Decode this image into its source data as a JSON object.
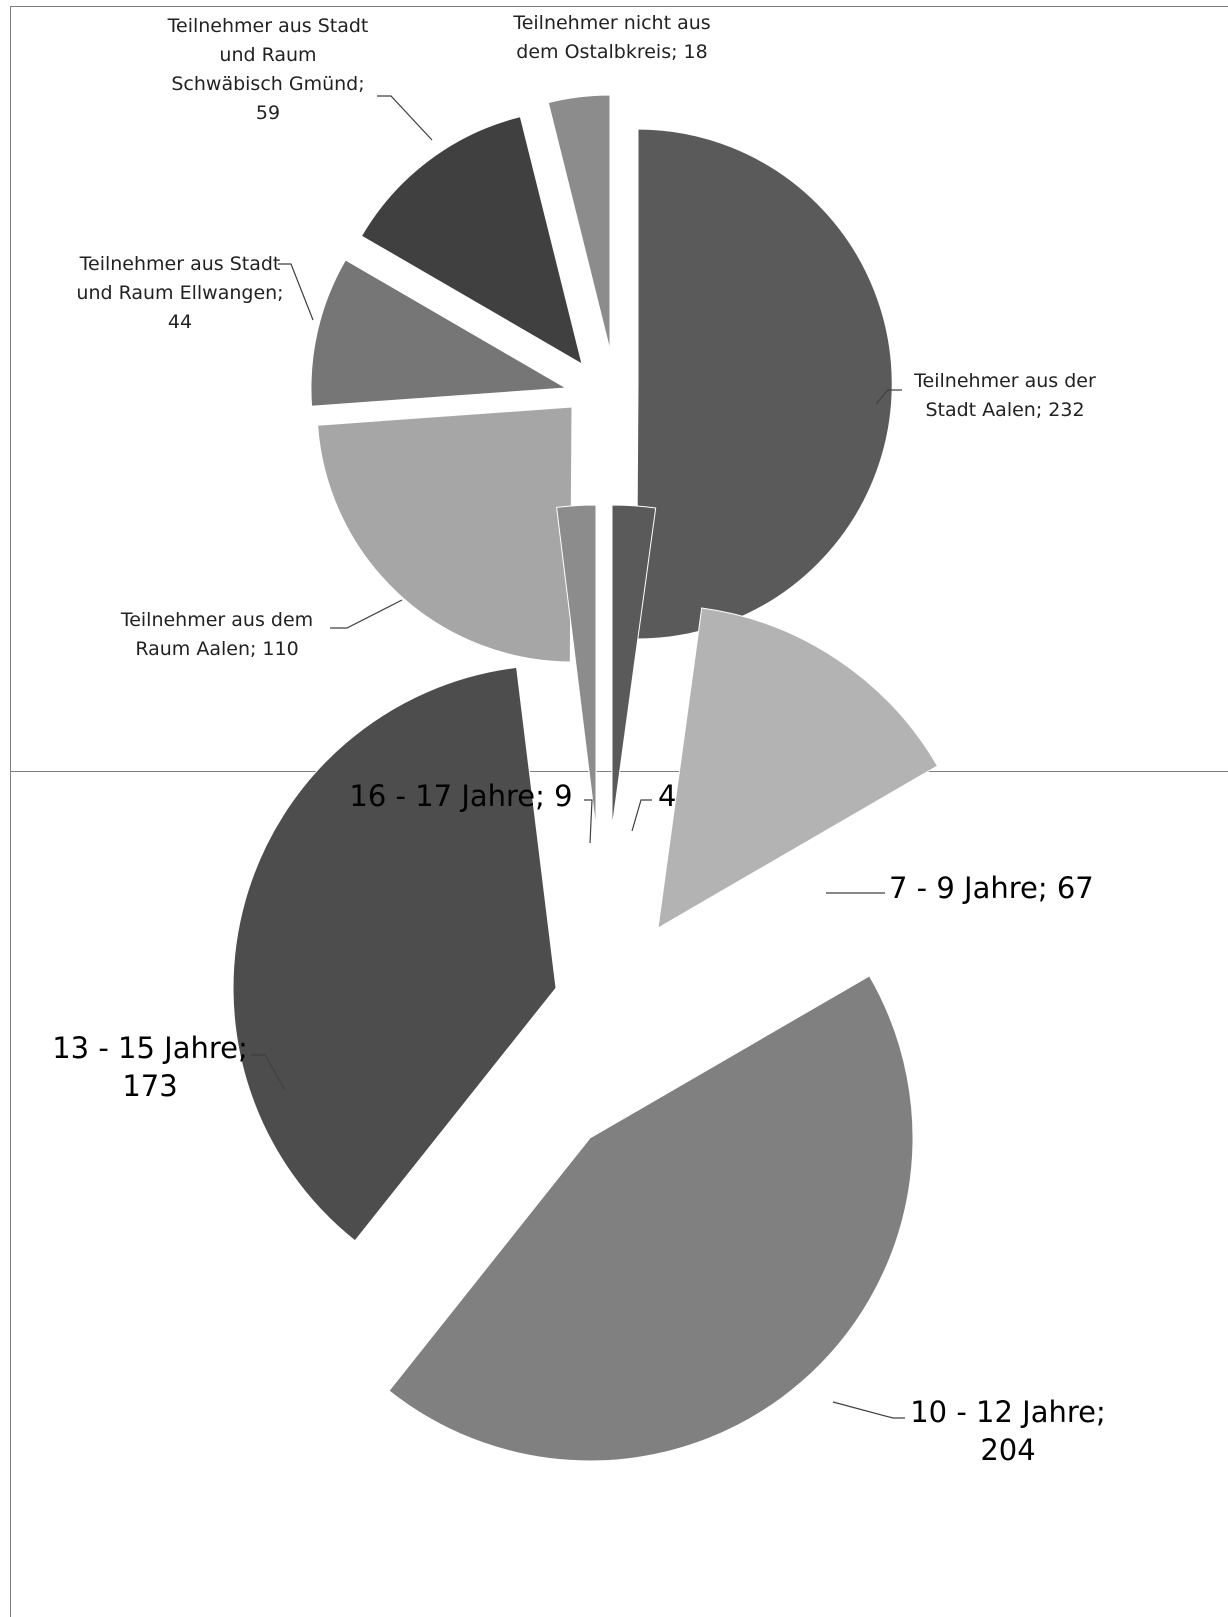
{
  "chart_data": [
    {
      "type": "pie",
      "exploded": true,
      "slices": [
        {
          "label": "Teilnehmer aus der Stadt Aalen",
          "value": 232,
          "color": "#5a5a5a"
        },
        {
          "label": "Teilnehmer aus dem Raum Aalen",
          "value": 110,
          "color": "#a6a6a6"
        },
        {
          "label": "Teilnehmer aus Stadt und Raum Ellwangen",
          "value": 44,
          "color": "#767676"
        },
        {
          "label": "Teilnehmer aus Stadt und Raum Schwäbisch Gmünd",
          "value": 59,
          "color": "#404040"
        },
        {
          "label": "Teilnehmer nicht aus dem Ostalbkreis",
          "value": 18,
          "color": "#8c8c8c"
        }
      ],
      "data_labels": [
        [
          "Teilnehmer aus der",
          "Stadt Aalen; 232"
        ],
        [
          "Teilnehmer aus dem",
          "Raum Aalen; 110"
        ],
        [
          "Teilnehmer aus Stadt",
          "und Raum Ellwangen;",
          "44"
        ],
        [
          "Teilnehmer aus Stadt",
          "und Raum",
          "Schwäbisch Gmünd;",
          "59"
        ],
        [
          "Teilnehmer nicht aus",
          "dem Ostalbkreis; 18"
        ]
      ]
    },
    {
      "type": "pie",
      "exploded": true,
      "slices": [
        {
          "label": "4 - 6 Jahre",
          "value": 10,
          "color": "#5a5a5a"
        },
        {
          "label": "7 - 9 Jahre",
          "value": 67,
          "color": "#b3b3b3"
        },
        {
          "label": "10 - 12 Jahre",
          "value": 204,
          "color": "#808080"
        },
        {
          "label": "13 - 15 Jahre",
          "value": 173,
          "color": "#4d4d4d"
        },
        {
          "label": "16 - 17 Jahre",
          "value": 9,
          "color": "#8c8c8c"
        }
      ],
      "data_labels": [
        [
          "4 - 6 Jahre; 10"
        ],
        [
          "7 - 9 Jahre; 67"
        ],
        [
          "10 - 12 Jahre;",
          "204"
        ],
        [
          "13 - 15 Jahre;",
          "173"
        ],
        [
          "16 - 17 Jahre; 9"
        ]
      ]
    }
  ]
}
